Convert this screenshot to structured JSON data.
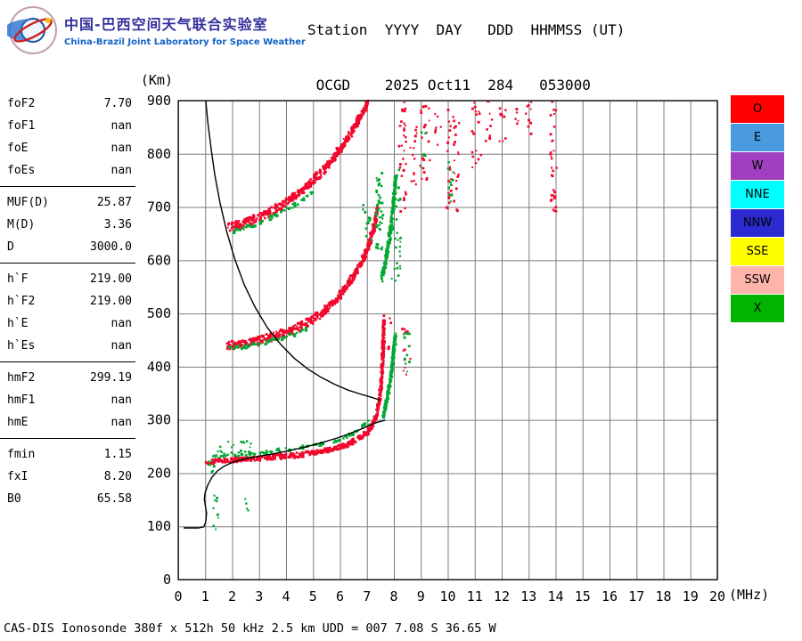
{
  "header": {
    "logo": {
      "title_cn": "中国-巴西空间天气联合实验室",
      "subtitle_en": "China-Brazil Joint Laboratory for Space Weather"
    },
    "station_line1": "Station  YYYY  DAY   DDD  HHMMSS (UT)",
    "station_line2": " OCGD    2025 Oct11  284   053000"
  },
  "params": {
    "groups": [
      {
        "rows": [
          {
            "label": "foF2",
            "value": "7.70"
          },
          {
            "label": "foF1",
            "value": "nan"
          },
          {
            "label": "foE",
            "value": "nan"
          },
          {
            "label": "foEs",
            "value": "nan"
          }
        ]
      },
      {
        "rows": [
          {
            "label": "MUF(D)",
            "value": "25.87"
          },
          {
            "label": "M(D)",
            "value": "3.36"
          },
          {
            "label": "D",
            "value": "3000.0"
          }
        ]
      },
      {
        "rows": [
          {
            "label": "h`F",
            "value": "219.00"
          },
          {
            "label": "h`F2",
            "value": "219.00"
          },
          {
            "label": "h`E",
            "value": "nan"
          },
          {
            "label": "h`Es",
            "value": "nan"
          }
        ]
      },
      {
        "rows": [
          {
            "label": "hmF2",
            "value": "299.19"
          },
          {
            "label": "hmF1",
            "value": "nan"
          },
          {
            "label": "hmE",
            "value": "nan"
          }
        ]
      },
      {
        "rows": [
          {
            "label": "fmin",
            "value": "1.15"
          },
          {
            "label": "fxI",
            "value": "8.20"
          },
          {
            "label": "B0",
            "value": "65.58"
          }
        ]
      }
    ]
  },
  "legend": {
    "items": [
      {
        "label": "O",
        "color": "#ff0000"
      },
      {
        "label": "E",
        "color": "#4a9ae0"
      },
      {
        "label": "W",
        "color": "#a040c0"
      },
      {
        "label": "NNE",
        "color": "#00ffff"
      },
      {
        "label": "NNW",
        "color": "#2a2ad0"
      },
      {
        "label": "SSE",
        "color": "#ffff00"
      },
      {
        "label": "SSW",
        "color": "#ffb4aa"
      },
      {
        "label": "X",
        "color": "#00b400"
      }
    ]
  },
  "chart_data": {
    "type": "scatter",
    "title": "Ionogram OCGD 2025 Oct11 284 053000 UT",
    "xlabel": "(MHz)",
    "ylabel": "(Km)",
    "xlim": [
      0,
      20
    ],
    "ylim": [
      0,
      900
    ],
    "x_ticks": [
      0,
      1,
      2,
      3,
      4,
      5,
      6,
      7,
      8,
      9,
      10,
      11,
      12,
      13,
      14,
      15,
      16,
      17,
      18,
      19,
      20
    ],
    "y_ticks": [
      0,
      100,
      200,
      300,
      400,
      500,
      600,
      700,
      800,
      900
    ],
    "grid": true,
    "legend_position": "right",
    "trace_colors": {
      "o_mode": "#f2072c",
      "x_mode": "#00a832"
    },
    "traces": [
      {
        "name": "o-hop1",
        "mode": "O",
        "color": "#f2072c",
        "width_km": 9,
        "density": 2.0,
        "points": [
          [
            1.05,
            220
          ],
          [
            1.4,
            223
          ],
          [
            1.8,
            224
          ],
          [
            2.4,
            226
          ],
          [
            3.0,
            228
          ],
          [
            3.6,
            230
          ],
          [
            4.2,
            233
          ],
          [
            4.8,
            236
          ],
          [
            5.4,
            241
          ],
          [
            5.9,
            247
          ],
          [
            6.3,
            254
          ],
          [
            6.7,
            264
          ],
          [
            7.0,
            276
          ],
          [
            7.2,
            290
          ],
          [
            7.35,
            308
          ],
          [
            7.45,
            330
          ],
          [
            7.52,
            362
          ],
          [
            7.57,
            398
          ],
          [
            7.6,
            432
          ],
          [
            7.62,
            465
          ],
          [
            7.63,
            488
          ]
        ]
      },
      {
        "name": "o-hop2",
        "mode": "O",
        "color": "#f2072c",
        "width_km": 16,
        "density": 2.2,
        "points": [
          [
            1.78,
            440
          ],
          [
            2.1,
            441
          ],
          [
            2.5,
            444
          ],
          [
            2.9,
            448
          ],
          [
            3.3,
            453
          ],
          [
            3.7,
            459
          ],
          [
            4.1,
            466
          ],
          [
            4.5,
            475
          ],
          [
            4.9,
            486
          ],
          [
            5.3,
            500
          ],
          [
            5.7,
            518
          ],
          [
            6.0,
            535
          ],
          [
            6.3,
            554
          ],
          [
            6.6,
            577
          ],
          [
            6.85,
            600
          ],
          [
            7.05,
            625
          ],
          [
            7.2,
            650
          ],
          [
            7.32,
            675
          ],
          [
            7.4,
            700
          ]
        ]
      },
      {
        "name": "o-hop3",
        "mode": "O",
        "color": "#f2072c",
        "width_km": 16,
        "density": 2.2,
        "points": [
          [
            1.82,
            660
          ],
          [
            2.2,
            666
          ],
          [
            2.6,
            672
          ],
          [
            3.0,
            680
          ],
          [
            3.4,
            690
          ],
          [
            3.8,
            702
          ],
          [
            4.2,
            716
          ],
          [
            4.6,
            732
          ],
          [
            5.0,
            750
          ],
          [
            5.4,
            770
          ],
          [
            5.7,
            788
          ],
          [
            6.0,
            808
          ],
          [
            6.3,
            830
          ],
          [
            6.6,
            854
          ],
          [
            6.85,
            878
          ],
          [
            7.05,
            898
          ]
        ]
      },
      {
        "name": "x-hop1-asymptote",
        "mode": "X",
        "color": "#00a832",
        "width_km": 10,
        "density": 2.0,
        "points": [
          [
            7.6,
            305
          ],
          [
            7.72,
            332
          ],
          [
            7.83,
            362
          ],
          [
            7.92,
            396
          ],
          [
            8.0,
            430
          ],
          [
            8.06,
            460
          ]
        ]
      },
      {
        "name": "x-hop1-fringe",
        "mode": "X",
        "color": "#00a832",
        "width_km": 7,
        "density": 0.55,
        "points": [
          [
            1.3,
            230
          ],
          [
            2.0,
            234
          ],
          [
            2.8,
            238
          ],
          [
            3.6,
            242
          ],
          [
            4.4,
            247
          ],
          [
            5.2,
            254
          ],
          [
            5.9,
            262
          ],
          [
            6.4,
            272
          ],
          [
            6.8,
            284
          ],
          [
            7.1,
            298
          ]
        ]
      },
      {
        "name": "x-hop2-asymptote",
        "mode": "X",
        "color": "#00a832",
        "width_km": 12,
        "density": 1.8,
        "points": [
          [
            7.55,
            565
          ],
          [
            7.7,
            600
          ],
          [
            7.83,
            640
          ],
          [
            7.93,
            682
          ],
          [
            8.02,
            725
          ],
          [
            8.08,
            762
          ]
        ]
      },
      {
        "name": "x-hop2-fringe",
        "mode": "X",
        "color": "#00a832",
        "width_km": 7,
        "density": 0.6,
        "points": [
          [
            1.85,
            433
          ],
          [
            2.3,
            436
          ],
          [
            2.8,
            440
          ],
          [
            3.3,
            446
          ],
          [
            3.8,
            453
          ],
          [
            4.3,
            461
          ],
          [
            4.8,
            472
          ]
        ]
      },
      {
        "name": "x-hop3-fringe",
        "mode": "X",
        "color": "#00a832",
        "width_km": 7,
        "density": 0.55,
        "points": [
          [
            2.0,
            654
          ],
          [
            2.5,
            661
          ],
          [
            3.0,
            670
          ],
          [
            3.5,
            681
          ],
          [
            4.0,
            695
          ],
          [
            4.5,
            710
          ],
          [
            5.0,
            728
          ]
        ]
      }
    ],
    "noise_clusters": [
      {
        "color": "#f2072c",
        "x": [
          8.2,
          8.45
        ],
        "y": [
          690,
          900
        ],
        "n": 30
      },
      {
        "color": "#f2072c",
        "x": [
          8.3,
          8.65
        ],
        "y": [
          380,
          475
        ],
        "n": 14
      },
      {
        "color": "#f2072c",
        "x": [
          8.55,
          8.9
        ],
        "y": [
          730,
          860
        ],
        "n": 14
      },
      {
        "color": "#f2072c",
        "x": [
          8.95,
          9.35
        ],
        "y": [
          750,
          900
        ],
        "n": 22
      },
      {
        "color": "#f2072c",
        "x": [
          9.5,
          9.75
        ],
        "y": [
          790,
          880
        ],
        "n": 9
      },
      {
        "color": "#f2072c",
        "x": [
          9.95,
          10.45
        ],
        "y": [
          690,
          900
        ],
        "n": 40
      },
      {
        "color": "#f2072c",
        "x": [
          10.85,
          11.25
        ],
        "y": [
          770,
          900
        ],
        "n": 18
      },
      {
        "color": "#f2072c",
        "x": [
          11.4,
          11.65
        ],
        "y": [
          810,
          900
        ],
        "n": 10
      },
      {
        "color": "#f2072c",
        "x": [
          11.9,
          12.15
        ],
        "y": [
          820,
          900
        ],
        "n": 9
      },
      {
        "color": "#f2072c",
        "x": [
          12.5,
          12.65
        ],
        "y": [
          850,
          900
        ],
        "n": 5
      },
      {
        "color": "#f2072c",
        "x": [
          12.9,
          13.15
        ],
        "y": [
          830,
          900
        ],
        "n": 9
      },
      {
        "color": "#f2072c",
        "x": [
          13.8,
          14.05
        ],
        "y": [
          690,
          900
        ],
        "n": 34
      },
      {
        "color": "#f2072c",
        "x": [
          7.62,
          7.9
        ],
        "y": [
          430,
          500
        ],
        "n": 6
      },
      {
        "color": "#00a832",
        "x": [
          7.35,
          7.6
        ],
        "y": [
          615,
          765
        ],
        "n": 45
      },
      {
        "color": "#00a832",
        "x": [
          7.9,
          8.25
        ],
        "y": [
          555,
          770
        ],
        "n": 32
      },
      {
        "color": "#00a832",
        "x": [
          8.35,
          8.6
        ],
        "y": [
          390,
          470
        ],
        "n": 10
      },
      {
        "color": "#00a832",
        "x": [
          6.85,
          7.25
        ],
        "y": [
          635,
          705
        ],
        "n": 14
      },
      {
        "color": "#00a832",
        "x": [
          9.0,
          9.2
        ],
        "y": [
          775,
          845
        ],
        "n": 6
      },
      {
        "color": "#00a832",
        "x": [
          10.0,
          10.2
        ],
        "y": [
          690,
          785
        ],
        "n": 10
      },
      {
        "color": "#00a832",
        "x": [
          1.28,
          1.5
        ],
        "y": [
          92,
          158
        ],
        "n": 9
      },
      {
        "color": "#00a832",
        "x": [
          2.48,
          2.62
        ],
        "y": [
          128,
          152
        ],
        "n": 4
      },
      {
        "color": "#00a832",
        "x": [
          1.45,
          2.7
        ],
        "y": [
          228,
          262
        ],
        "n": 22
      },
      {
        "color": "#00a832",
        "x": [
          1.1,
          1.35
        ],
        "y": [
          200,
          225
        ],
        "n": 6
      }
    ],
    "curves": [
      {
        "name": "transmission-curve",
        "color": "#000000",
        "points": [
          [
            1.02,
            900
          ],
          [
            1.1,
            858
          ],
          [
            1.22,
            810
          ],
          [
            1.36,
            760
          ],
          [
            1.55,
            708
          ],
          [
            1.8,
            654
          ],
          [
            2.1,
            602
          ],
          [
            2.45,
            554
          ],
          [
            2.85,
            512
          ],
          [
            3.3,
            474
          ],
          [
            3.8,
            442
          ],
          [
            4.3,
            416
          ],
          [
            4.8,
            396
          ],
          [
            5.3,
            380
          ],
          [
            5.8,
            367
          ],
          [
            6.3,
            356
          ],
          [
            6.8,
            348
          ],
          [
            7.2,
            342
          ],
          [
            7.5,
            337
          ]
        ]
      },
      {
        "name": "profile-curve",
        "color": "#000000",
        "points": [
          [
            0.2,
            97
          ],
          [
            0.75,
            97
          ],
          [
            0.95,
            99
          ],
          [
            1.02,
            108
          ],
          [
            1.05,
            125
          ],
          [
            1.0,
            140
          ],
          [
            0.97,
            152
          ],
          [
            1.0,
            164
          ],
          [
            1.1,
            178
          ],
          [
            1.25,
            192
          ],
          [
            1.45,
            204
          ],
          [
            1.7,
            213
          ],
          [
            2.0,
            220
          ],
          [
            2.4,
            226
          ],
          [
            2.9,
            231
          ],
          [
            3.5,
            236
          ],
          [
            4.1,
            242
          ],
          [
            4.7,
            249
          ],
          [
            5.3,
            257
          ],
          [
            5.9,
            266
          ],
          [
            6.4,
            275
          ],
          [
            6.8,
            283
          ],
          [
            7.1,
            290
          ],
          [
            7.35,
            295
          ],
          [
            7.55,
            298
          ],
          [
            7.68,
            299.2
          ]
        ]
      }
    ]
  },
  "status_line": "CAS-DIS Ionosonde 380f x 512h 50 kHz 2.5 km UDD = 007 7.08 S 36.65 W"
}
